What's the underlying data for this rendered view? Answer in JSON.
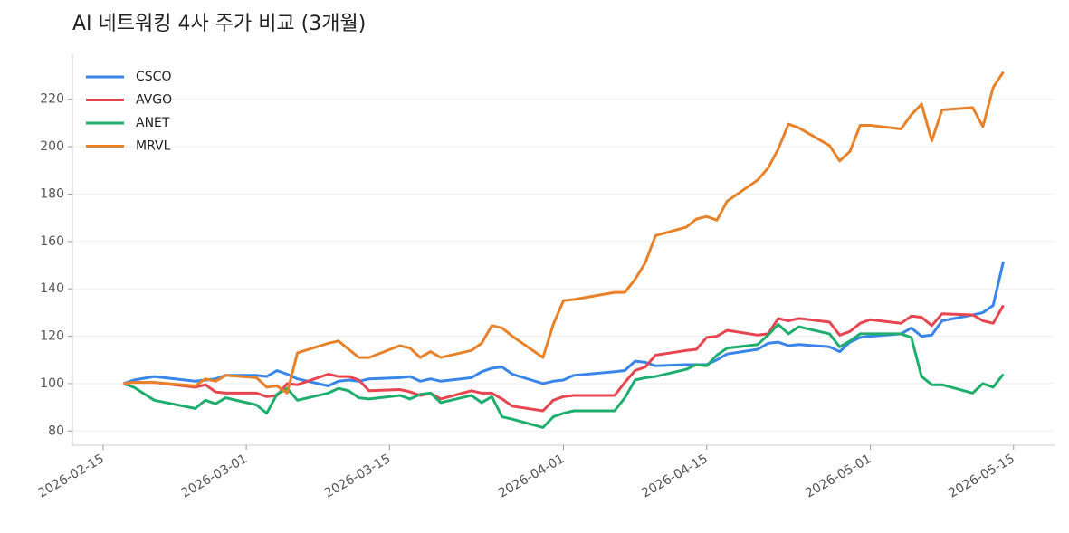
{
  "chart_data": {
    "type": "line",
    "title": "AI 네트워킹 4사 주가 비교 (3개월)",
    "x": [
      "2026-02-17",
      "2026-02-18",
      "2026-02-20",
      "2026-02-24",
      "2026-02-25",
      "2026-02-26",
      "2026-02-27",
      "2026-03-02",
      "2026-03-03",
      "2026-03-04",
      "2026-03-05",
      "2026-03-06",
      "2026-03-09",
      "2026-03-10",
      "2026-03-11",
      "2026-03-12",
      "2026-03-13",
      "2026-03-16",
      "2026-03-17",
      "2026-03-18",
      "2026-03-19",
      "2026-03-20",
      "2026-03-23",
      "2026-03-24",
      "2026-03-25",
      "2026-03-26",
      "2026-03-27",
      "2026-03-30",
      "2026-03-31",
      "2026-04-01",
      "2026-04-02",
      "2026-04-06",
      "2026-04-07",
      "2026-04-08",
      "2026-04-09",
      "2026-04-10",
      "2026-04-13",
      "2026-04-14",
      "2026-04-15",
      "2026-04-16",
      "2026-04-17",
      "2026-04-20",
      "2026-04-21",
      "2026-04-22",
      "2026-04-23",
      "2026-04-24",
      "2026-04-27",
      "2026-04-28",
      "2026-04-29",
      "2026-04-30",
      "2026-05-01",
      "2026-05-04",
      "2026-05-05",
      "2026-05-06",
      "2026-05-07",
      "2026-05-08",
      "2026-05-11",
      "2026-05-12",
      "2026-05-13",
      "2026-05-14"
    ],
    "series": [
      {
        "name": "CSCO",
        "color": "#3a86e8",
        "values": [
          100,
          101.5,
          103,
          101,
          101.5,
          102,
          103.5,
          103.5,
          103,
          105.5,
          104,
          102,
          99,
          101,
          101.5,
          101,
          102,
          102.5,
          103,
          101,
          102,
          101,
          102.5,
          105,
          106.5,
          107,
          104,
          100,
          101,
          101.5,
          103.5,
          105,
          105.5,
          109.5,
          109,
          107.5,
          108,
          108,
          108,
          110,
          112.5,
          114.5,
          117,
          117.5,
          116,
          116.5,
          115.5,
          113.5,
          117.5,
          119.5,
          120,
          121,
          123.5,
          120,
          120.5,
          126.5,
          129,
          130,
          133,
          151.5
        ]
      },
      {
        "name": "AVGO",
        "color": "#e5464f",
        "values": [
          100,
          100.5,
          100.5,
          98.5,
          99.5,
          96.5,
          96,
          96,
          94.5,
          95,
          100,
          99.5,
          104,
          103,
          103,
          101.5,
          97,
          97.5,
          96.5,
          95,
          96,
          93.5,
          97,
          96,
          96,
          93.5,
          90.5,
          88.5,
          93,
          94.5,
          95,
          95,
          100.5,
          105.5,
          107,
          112,
          114,
          114.5,
          119.5,
          120,
          122.5,
          120.5,
          121,
          127.5,
          126.5,
          127.5,
          126,
          120.5,
          122,
          125.5,
          127,
          125.5,
          128.5,
          128,
          124.5,
          129.5,
          129,
          126.5,
          125.5,
          133
        ]
      },
      {
        "name": "ANET",
        "color": "#1fae6e",
        "values": [
          100,
          98.5,
          93,
          89.5,
          93,
          91.5,
          94,
          91,
          87.5,
          95.5,
          98,
          93,
          96,
          98,
          97,
          94,
          93.5,
          95,
          93.5,
          95.5,
          96,
          92,
          95,
          92,
          94.5,
          86,
          85,
          81.5,
          86,
          87.5,
          88.5,
          88.5,
          94,
          101.5,
          102.5,
          103,
          106,
          108,
          107.5,
          112,
          115,
          116.5,
          120.5,
          125,
          121,
          124,
          121,
          115.5,
          118,
          121,
          121,
          121,
          119.5,
          103,
          99.5,
          99.5,
          96,
          100,
          98.5,
          104
        ]
      },
      {
        "name": "MRVL",
        "color": "#e8822a",
        "values": [
          100,
          100.5,
          100.5,
          99,
          102,
          101,
          103.5,
          102.5,
          98.5,
          99,
          96,
          113,
          117,
          118,
          114.5,
          111,
          111,
          116,
          115,
          111,
          113.5,
          111,
          114,
          117,
          124.5,
          123.5,
          120,
          111,
          125,
          135,
          135.5,
          138.5,
          138.5,
          144,
          151,
          162.5,
          166,
          169.5,
          170.5,
          169,
          177,
          186,
          191,
          199,
          209.5,
          208,
          200.5,
          194,
          198,
          209,
          209,
          207.5,
          213.5,
          218,
          202.5,
          215.5,
          216.5,
          208.5,
          225,
          231.5
        ]
      }
    ],
    "xlim": [
      "2026-02-12",
      "2026-05-19"
    ],
    "xticks": [
      "2026-02-15",
      "2026-03-01",
      "2026-03-15",
      "2026-04-01",
      "2026-04-15",
      "2026-05-01",
      "2026-05-15"
    ],
    "ylim": [
      74,
      239
    ],
    "yticks": [
      80,
      100,
      120,
      140,
      160,
      180,
      200,
      220
    ],
    "grid": true,
    "legend": "upper left"
  }
}
